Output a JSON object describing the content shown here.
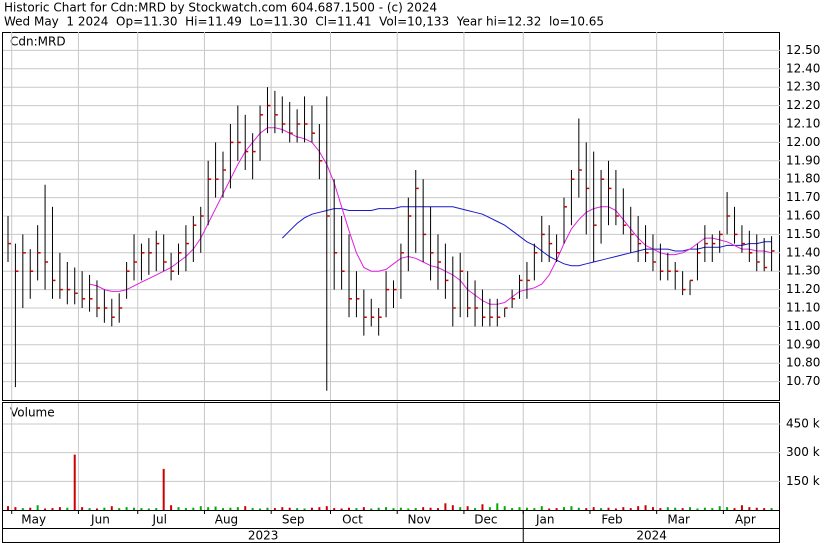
{
  "chart_data": {
    "type": "ohlc",
    "title": "Historic Chart for Cdn:MRD by Stockwatch.com 604.687.1500 - (c) 2024",
    "subtitle": "Wed May  1 2024  Op=11.30  Hi=11.49  Lo=11.30  Cl=11.41  Vol=10,133  Year hi=12.32  lo=10.65",
    "price_label": "Cdn:MRD",
    "volume_label": "Volume",
    "categories": [
      null,
      "May",
      null,
      null,
      null,
      null,
      null,
      null,
      null,
      null,
      "Jun",
      null,
      null,
      null,
      null,
      null,
      null,
      null,
      "Jul",
      null,
      null,
      null,
      null,
      null,
      null,
      null,
      null,
      "Aug",
      null,
      null,
      null,
      null,
      null,
      null,
      null,
      null,
      "Sep",
      null,
      null,
      null,
      null,
      null,
      null,
      null,
      "Oct",
      null,
      null,
      null,
      null,
      null,
      null,
      null,
      null,
      "Nov",
      null,
      null,
      null,
      null,
      null,
      null,
      null,
      null,
      "Dec",
      null,
      null,
      null,
      null,
      null,
      null,
      null,
      "Jan",
      null,
      null,
      null,
      null,
      null,
      null,
      null,
      null,
      "Feb",
      null,
      null,
      null,
      null,
      null,
      null,
      null,
      null,
      "Mar",
      null,
      null,
      null,
      null,
      null,
      null,
      null,
      null,
      "Apr",
      null,
      null,
      null,
      null,
      null,
      null
    ],
    "year_groups": [
      {
        "label": "2023",
        "count": 70
      },
      {
        "label": "2024",
        "count": 34
      }
    ],
    "high": [
      11.6,
      11.45,
      11.5,
      11.42,
      11.55,
      11.77,
      11.65,
      11.4,
      11.35,
      11.32,
      11.3,
      11.28,
      11.25,
      11.2,
      11.15,
      11.18,
      11.35,
      11.5,
      11.45,
      11.48,
      11.52,
      11.5,
      11.4,
      11.45,
      11.55,
      11.6,
      11.65,
      11.9,
      12.0,
      11.95,
      12.1,
      12.2,
      12.15,
      12.05,
      12.2,
      12.3,
      12.28,
      12.25,
      12.22,
      12.18,
      12.25,
      12.2,
      12.1,
      12.25,
      11.8,
      11.6,
      11.5,
      11.3,
      11.2,
      11.15,
      11.1,
      11.3,
      11.25,
      11.45,
      11.7,
      11.85,
      11.8,
      11.65,
      11.5,
      11.45,
      11.38,
      11.4,
      11.3,
      11.25,
      11.2,
      11.15,
      11.15,
      11.1,
      11.2,
      11.28,
      11.35,
      11.45,
      11.6,
      11.55,
      11.5,
      11.7,
      11.85,
      12.13,
      12.0,
      11.95,
      11.85,
      11.9,
      11.85,
      11.75,
      11.65,
      11.6,
      11.55,
      11.5,
      11.45,
      11.4,
      11.35,
      11.3,
      11.25,
      11.45,
      11.55,
      11.5,
      11.52,
      11.73,
      11.65,
      11.55,
      11.52,
      11.5,
      11.48,
      11.49
    ],
    "low": [
      11.35,
      10.67,
      11.1,
      11.15,
      11.25,
      11.2,
      11.15,
      11.15,
      11.12,
      11.12,
      11.1,
      11.08,
      11.05,
      11.02,
      11.0,
      11.02,
      11.15,
      11.25,
      11.25,
      11.28,
      11.3,
      11.3,
      11.25,
      11.28,
      11.3,
      11.35,
      11.4,
      11.55,
      11.7,
      11.7,
      11.75,
      11.9,
      11.85,
      11.8,
      11.9,
      12.05,
      12.05,
      12.05,
      12.0,
      12.0,
      12.0,
      12.0,
      11.8,
      10.65,
      11.2,
      11.2,
      11.05,
      11.05,
      10.95,
      11.0,
      10.95,
      11.05,
      11.1,
      11.15,
      11.3,
      11.4,
      11.35,
      11.25,
      11.2,
      11.15,
      11.0,
      11.05,
      11.05,
      11.0,
      11.0,
      11.0,
      11.0,
      11.05,
      11.1,
      11.15,
      11.15,
      11.25,
      11.35,
      11.35,
      11.35,
      11.45,
      11.55,
      11.7,
      11.5,
      11.35,
      11.45,
      11.55,
      11.55,
      11.5,
      11.4,
      11.35,
      11.35,
      11.3,
      11.25,
      11.25,
      11.2,
      11.17,
      11.17,
      11.25,
      11.35,
      11.35,
      11.4,
      11.5,
      11.45,
      11.4,
      11.35,
      11.3,
      11.3,
      11.3
    ],
    "close": [
      11.45,
      11.3,
      11.4,
      11.3,
      11.4,
      11.35,
      11.25,
      11.2,
      11.2,
      11.18,
      11.15,
      11.15,
      11.1,
      11.1,
      11.05,
      11.1,
      11.3,
      11.35,
      11.4,
      11.4,
      11.45,
      11.35,
      11.3,
      11.4,
      11.45,
      11.55,
      11.6,
      11.8,
      11.8,
      11.85,
      12.0,
      12.0,
      11.95,
      11.95,
      12.15,
      12.2,
      12.15,
      12.1,
      12.05,
      12.1,
      12.1,
      12.05,
      11.9,
      11.6,
      11.4,
      11.3,
      11.15,
      11.15,
      11.05,
      11.05,
      11.05,
      11.2,
      11.2,
      11.4,
      11.6,
      11.75,
      11.5,
      11.4,
      11.35,
      11.25,
      11.1,
      11.3,
      11.1,
      11.1,
      11.05,
      11.05,
      11.05,
      11.1,
      11.15,
      11.25,
      11.25,
      11.4,
      11.5,
      11.45,
      11.4,
      11.65,
      11.8,
      11.85,
      11.75,
      11.55,
      11.8,
      11.75,
      11.6,
      11.55,
      11.5,
      11.45,
      11.4,
      11.35,
      11.3,
      11.3,
      11.3,
      11.2,
      11.25,
      11.4,
      11.45,
      11.45,
      11.5,
      11.6,
      11.5,
      11.45,
      11.4,
      11.35,
      11.32,
      11.41
    ],
    "volume": [
      20000,
      15000,
      10000,
      12000,
      25000,
      8000,
      10000,
      15000,
      12000,
      290000,
      15000,
      10000,
      8000,
      12000,
      20000,
      10000,
      15000,
      12000,
      10000,
      8000,
      10000,
      215000,
      25000,
      15000,
      10000,
      12000,
      20000,
      15000,
      18000,
      10000,
      12000,
      15000,
      20000,
      10000,
      8000,
      12000,
      10000,
      15000,
      12000,
      10000,
      8000,
      12000,
      15000,
      20000,
      10000,
      8000,
      12000,
      10000,
      15000,
      8000,
      12000,
      15000,
      10000,
      12000,
      8000,
      10000,
      15000,
      12000,
      10000,
      35000,
      25000,
      15000,
      20000,
      10000,
      30000,
      15000,
      35000,
      20000,
      10000,
      15000,
      12000,
      10000,
      20000,
      8000,
      10000,
      15000,
      20000,
      12000,
      10000,
      15000,
      10000,
      12000,
      8000,
      15000,
      10000,
      20000,
      25000,
      15000,
      10000,
      15000,
      12000,
      10000,
      15000,
      8000,
      12000,
      10000,
      20000,
      15000,
      10000,
      25000,
      15000,
      12000,
      10000,
      10133
    ],
    "ma_short": {
      "color": "#e020e0",
      "values": [
        null,
        null,
        null,
        null,
        null,
        null,
        null,
        null,
        null,
        null,
        null,
        11.23,
        11.22,
        11.2,
        11.19,
        11.19,
        11.2,
        11.22,
        11.24,
        11.26,
        11.28,
        11.3,
        11.32,
        11.35,
        11.38,
        11.42,
        11.48,
        11.56,
        11.64,
        11.72,
        11.8,
        11.88,
        11.95,
        12.0,
        12.05,
        12.08,
        12.08,
        12.07,
        12.05,
        12.03,
        12.02,
        12.0,
        11.95,
        11.88,
        11.78,
        11.65,
        11.52,
        11.4,
        11.32,
        11.3,
        11.3,
        11.31,
        11.34,
        11.37,
        11.38,
        11.37,
        11.35,
        11.33,
        11.32,
        11.3,
        11.28,
        11.25,
        11.2,
        11.17,
        11.14,
        11.12,
        11.12,
        11.13,
        11.16,
        11.19,
        11.2,
        11.21,
        11.23,
        11.28,
        11.36,
        11.45,
        11.53,
        11.58,
        11.62,
        11.64,
        11.65,
        11.65,
        11.63,
        11.58,
        11.53,
        11.48,
        11.44,
        11.42,
        11.4,
        11.39,
        11.39,
        11.4,
        11.42,
        11.45,
        11.48,
        11.48,
        11.47,
        11.46,
        11.44,
        11.42,
        11.42,
        11.41,
        11.41,
        11.4
      ]
    },
    "ma_long": {
      "color": "#1a1ac8",
      "values": [
        null,
        null,
        null,
        null,
        null,
        null,
        null,
        null,
        null,
        null,
        null,
        null,
        null,
        null,
        null,
        null,
        null,
        null,
        null,
        null,
        null,
        null,
        null,
        null,
        null,
        null,
        null,
        null,
        null,
        null,
        null,
        null,
        null,
        null,
        null,
        null,
        null,
        11.48,
        11.52,
        11.56,
        11.59,
        11.61,
        11.62,
        11.63,
        11.64,
        11.64,
        11.63,
        11.63,
        11.63,
        11.63,
        11.64,
        11.64,
        11.64,
        11.65,
        11.65,
        11.65,
        11.65,
        11.65,
        11.65,
        11.65,
        11.65,
        11.64,
        11.63,
        11.62,
        11.61,
        11.59,
        11.57,
        11.55,
        11.52,
        11.49,
        11.46,
        11.44,
        11.41,
        11.38,
        11.36,
        11.34,
        11.33,
        11.33,
        11.34,
        11.35,
        11.36,
        11.37,
        11.38,
        11.39,
        11.4,
        11.41,
        11.42,
        11.42,
        11.42,
        11.42,
        11.41,
        11.41,
        11.42,
        11.42,
        11.43,
        11.43,
        11.43,
        11.44,
        11.44,
        11.44,
        11.45,
        11.45,
        11.46,
        11.46
      ]
    },
    "bar_color": "#000000",
    "close_color": "#cc0000",
    "up_color": "#00aa00",
    "down_color": "#cc0000",
    "ylim": [
      10.6,
      12.6
    ],
    "yticks": [
      {
        "value": 10.7,
        "label": "10.70"
      },
      {
        "value": 10.8,
        "label": "10.80"
      },
      {
        "value": 10.9,
        "label": "10.90"
      },
      {
        "value": 11.0,
        "label": "11.00"
      },
      {
        "value": 11.1,
        "label": "11.10"
      },
      {
        "value": 11.2,
        "label": "11.20"
      },
      {
        "value": 11.3,
        "label": "11.30"
      },
      {
        "value": 11.4,
        "label": "11.40"
      },
      {
        "value": 11.5,
        "label": "11.50"
      },
      {
        "value": 11.6,
        "label": "11.60"
      },
      {
        "value": 11.7,
        "label": "11.70"
      },
      {
        "value": 11.8,
        "label": "11.80"
      },
      {
        "value": 11.9,
        "label": "11.90"
      },
      {
        "value": 12.0,
        "label": "12.00"
      },
      {
        "value": 12.1,
        "label": "12.10"
      },
      {
        "value": 12.2,
        "label": "12.20"
      },
      {
        "value": 12.3,
        "label": "12.30"
      },
      {
        "value": 12.4,
        "label": "12.40"
      },
      {
        "value": 12.5,
        "label": "12.50"
      }
    ],
    "y2lim": [
      0,
      560000
    ],
    "y2ticks": [
      {
        "value": 150000,
        "label": "150 k"
      },
      {
        "value": 300000,
        "label": "300 k"
      },
      {
        "value": 450000,
        "label": "450 k"
      }
    ],
    "grid": true
  }
}
